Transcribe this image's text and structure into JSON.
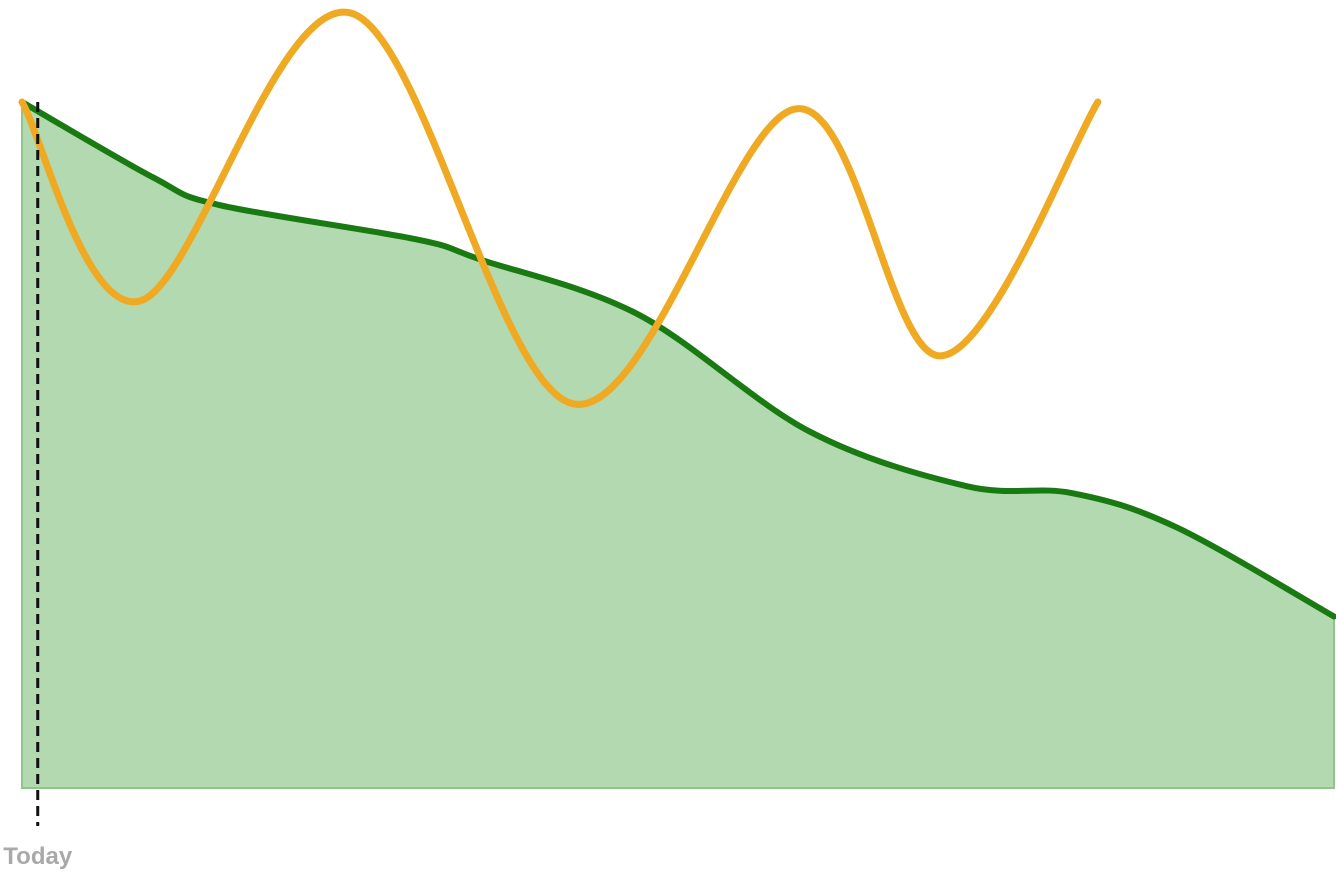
{
  "chart_data": {
    "type": "area",
    "title": "",
    "xlabel": "",
    "ylabel": "",
    "xlim": [
      0,
      1
    ],
    "ylim": [
      0,
      1
    ],
    "grid": false,
    "legend": "none",
    "annotations": [
      {
        "label": "Today",
        "x": 0.012,
        "style": "dashed-vertical-line"
      }
    ],
    "series": [
      {
        "kind": "area",
        "color": "#1a7a12",
        "fill": "#b3d9b0",
        "x": [
          0.0,
          0.1,
          0.15,
          0.3,
          0.35,
          0.47,
          0.6,
          0.72,
          0.8,
          0.88,
          1.0
        ],
        "y": [
          1.0,
          0.89,
          0.85,
          0.8,
          0.77,
          0.69,
          0.52,
          0.44,
          0.43,
          0.38,
          0.25
        ]
      },
      {
        "kind": "line",
        "color": "#f0a922",
        "x": [
          0.0,
          0.09,
          0.25,
          0.42,
          0.59,
          0.7,
          0.82
        ],
        "y": [
          1.0,
          0.71,
          1.13,
          0.56,
          0.99,
          0.63,
          1.0
        ]
      }
    ]
  }
}
